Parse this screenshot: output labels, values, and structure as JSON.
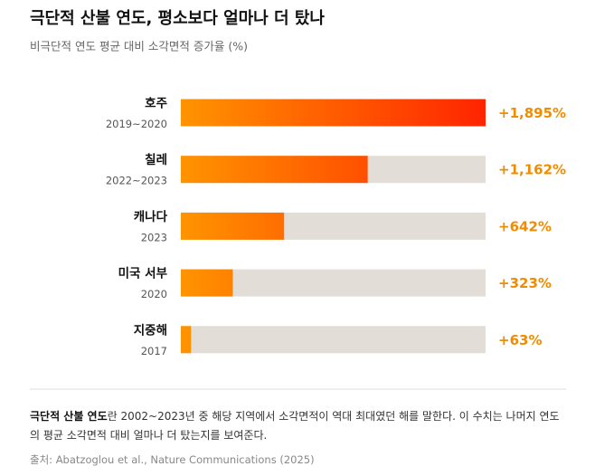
{
  "chart_data": {
    "type": "bar",
    "title": "극단적 산불 연도, 평소보다 얼마나 더 탔나",
    "subtitle": "비극단적 연도 평균 대비 소각면적 증가율 (%)",
    "categories": [
      "호주",
      "칠레",
      "캐나다",
      "미국 서부",
      "지중해"
    ],
    "periods": [
      "2019~2020",
      "2022~2023",
      "2023",
      "2020",
      "2017"
    ],
    "values": [
      1895,
      1162,
      642,
      323,
      63
    ],
    "value_labels": [
      "+1,895%",
      "+1,162%",
      "+642%",
      "+323%",
      "+63%"
    ],
    "colors": [
      "#ff9400",
      "#ff2400"
    ],
    "xlim": [
      0,
      1895
    ],
    "note_bold": "극단적 산불 연도",
    "note": "란 2002~2023년 중 해당 지역에서 소각면적이 역대 최대였던 해를 말한다. 이 수치는 나머지 연도의 평균 소각면적 대비 얼마나 더 탔는지를 보여준다.",
    "source": "출처: Abatzoglou et al., Nature Communications (2025)"
  }
}
